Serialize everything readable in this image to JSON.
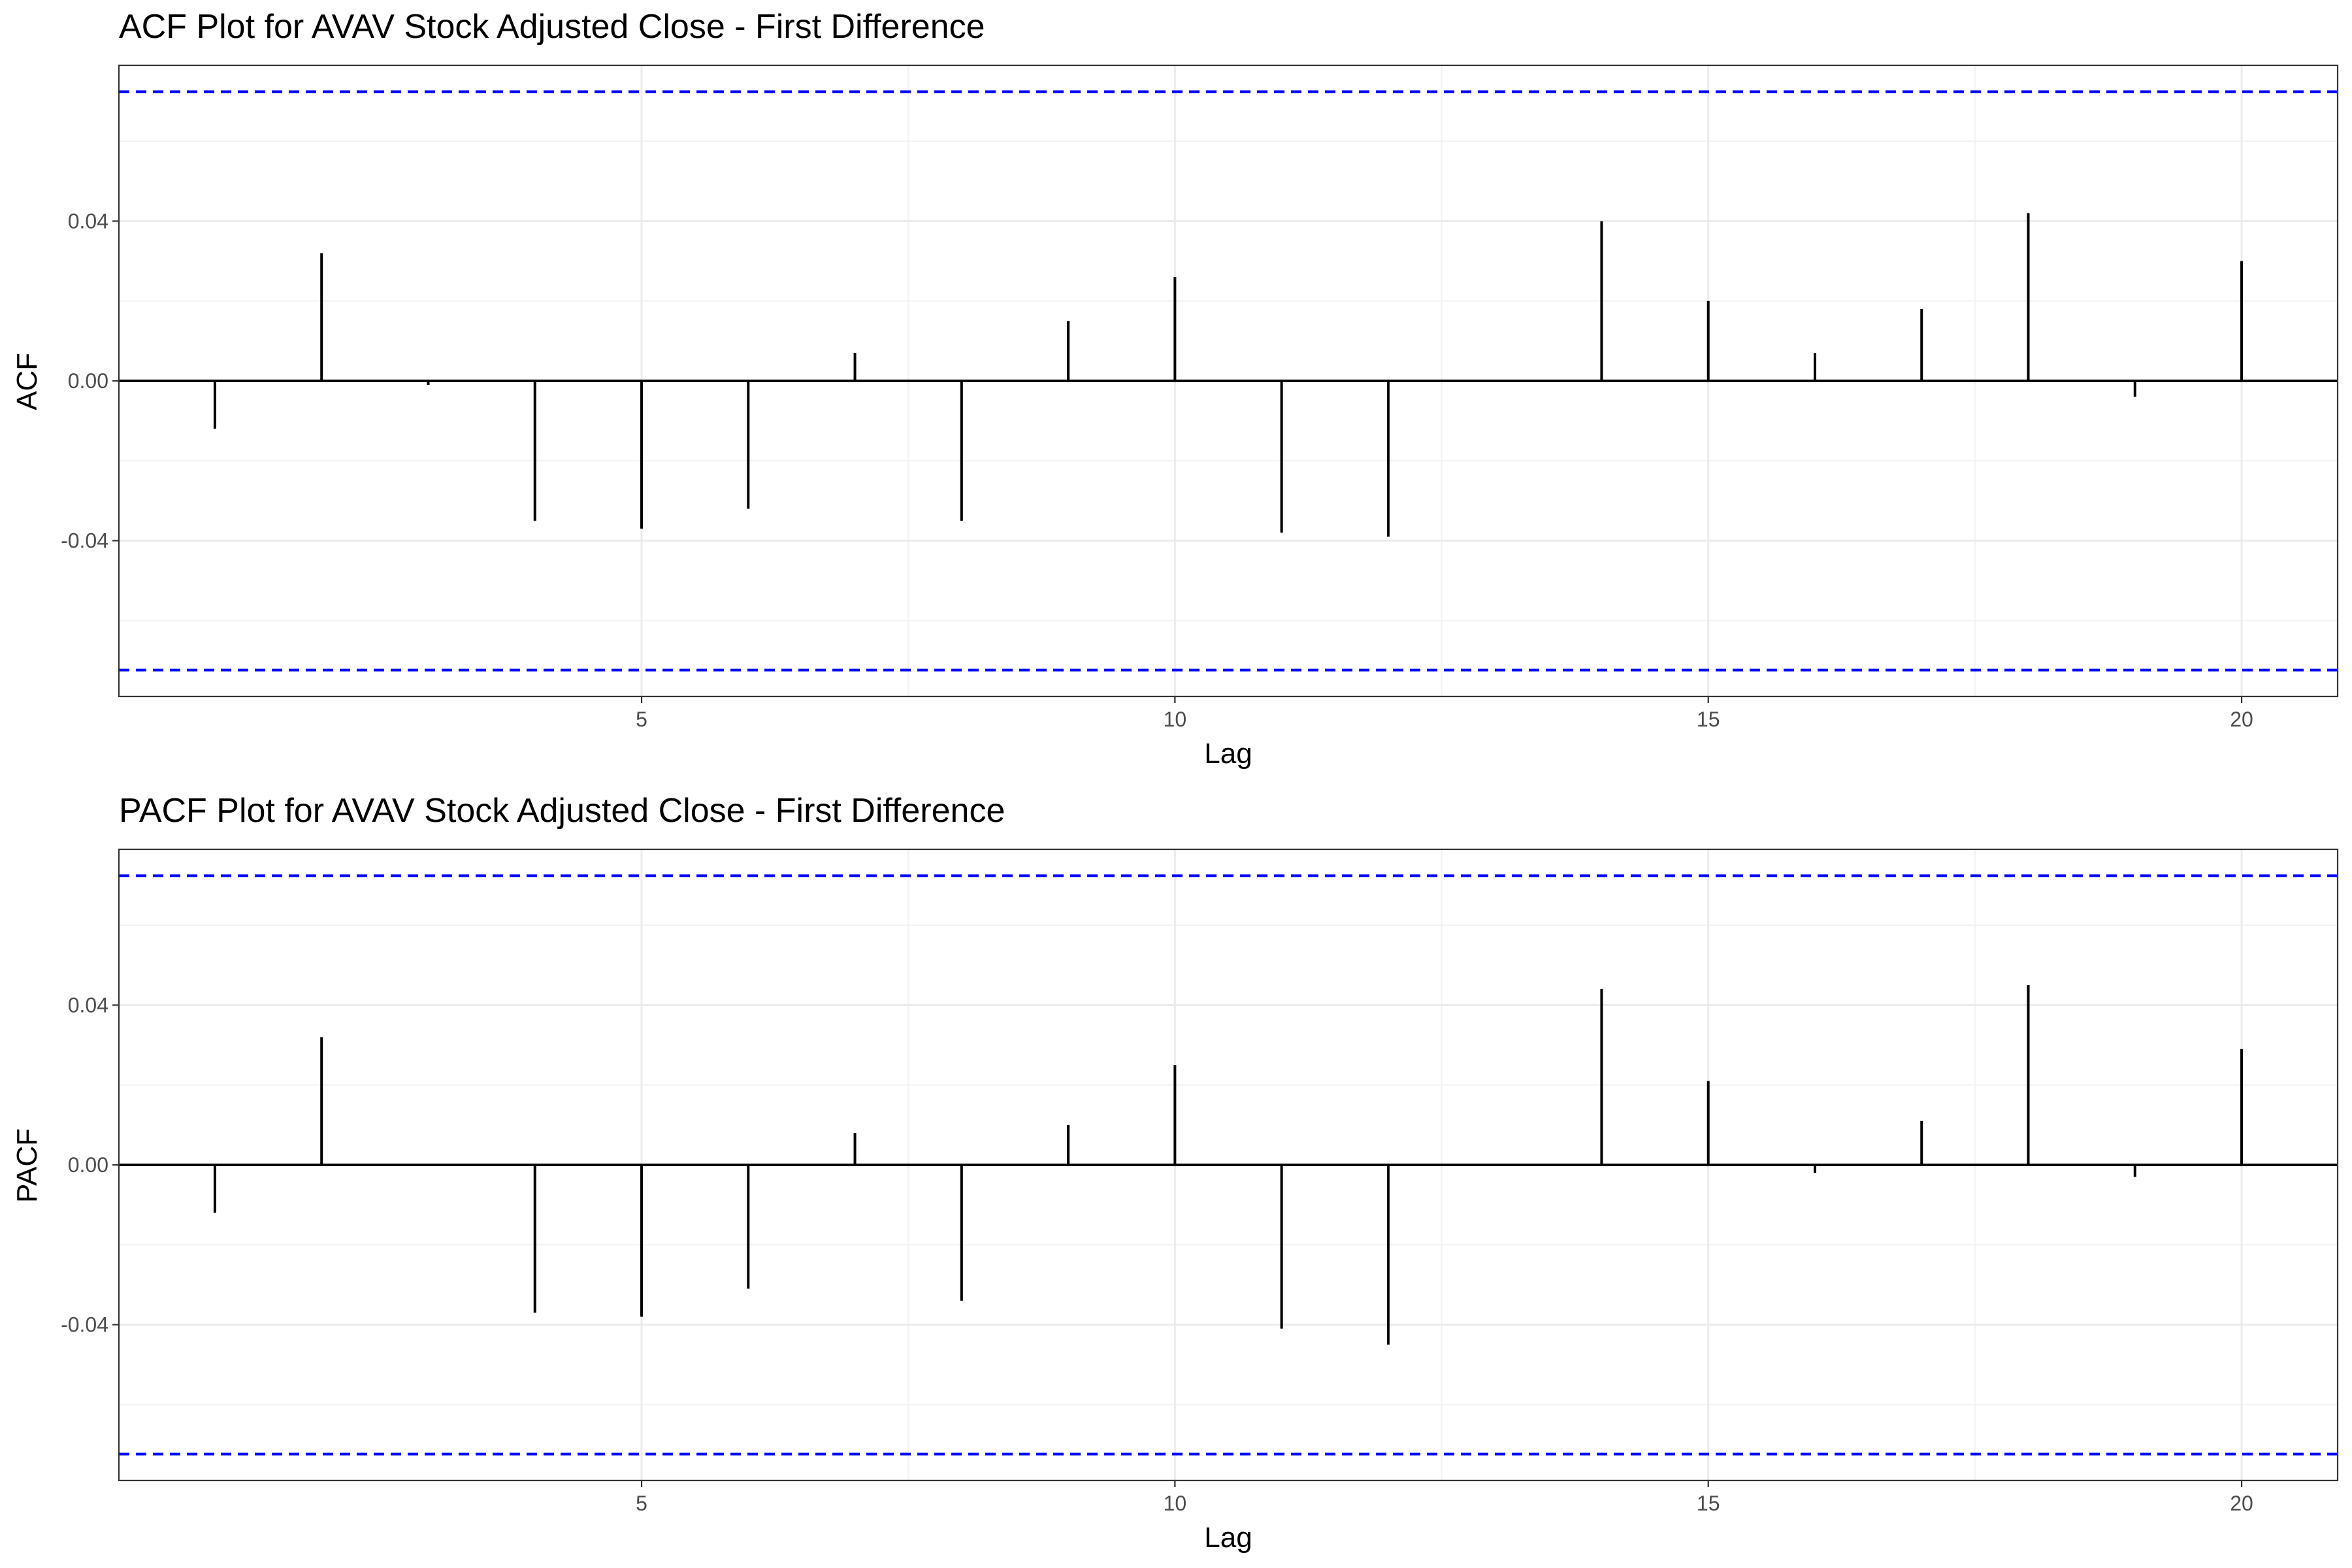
{
  "chart_data": [
    {
      "type": "bar",
      "title": "ACF Plot for AVAV Stock Adjusted Close - First Difference",
      "xlabel": "Lag",
      "ylabel": "ACF",
      "x_ticks": [
        "5",
        "10",
        "15",
        "20"
      ],
      "y_ticks": [
        "-0.04",
        "0.00",
        "0.04"
      ],
      "xlim": [
        0.1,
        20.9
      ],
      "ylim": [
        -0.079,
        0.079
      ],
      "confidence_bound": 0.0724,
      "grid": true,
      "lags": [
        1,
        2,
        3,
        4,
        5,
        6,
        7,
        8,
        9,
        10,
        11,
        12,
        13,
        14,
        15,
        16,
        17,
        18,
        19,
        20
      ],
      "values": [
        -0.012,
        0.032,
        -0.001,
        -0.035,
        -0.037,
        -0.032,
        0.007,
        -0.035,
        0.015,
        0.026,
        -0.038,
        -0.039,
        0.0,
        0.04,
        0.02,
        0.007,
        0.018,
        0.042,
        -0.004,
        0.03
      ]
    },
    {
      "type": "bar",
      "title": "PACF Plot for AVAV Stock Adjusted Close - First Difference",
      "xlabel": "Lag",
      "ylabel": "PACF",
      "x_ticks": [
        "5",
        "10",
        "15",
        "20"
      ],
      "y_ticks": [
        "-0.04",
        "0.00",
        "0.04"
      ],
      "xlim": [
        0.1,
        20.9
      ],
      "ylim": [
        -0.079,
        0.079
      ],
      "confidence_bound": 0.0724,
      "grid": true,
      "lags": [
        1,
        2,
        3,
        4,
        5,
        6,
        7,
        8,
        9,
        10,
        11,
        12,
        13,
        14,
        15,
        16,
        17,
        18,
        19,
        20
      ],
      "values": [
        -0.012,
        0.032,
        0.0,
        -0.037,
        -0.038,
        -0.031,
        0.008,
        -0.034,
        0.01,
        0.025,
        -0.041,
        -0.045,
        0.0,
        0.044,
        0.021,
        -0.002,
        0.011,
        0.045,
        -0.003,
        0.029
      ]
    }
  ]
}
